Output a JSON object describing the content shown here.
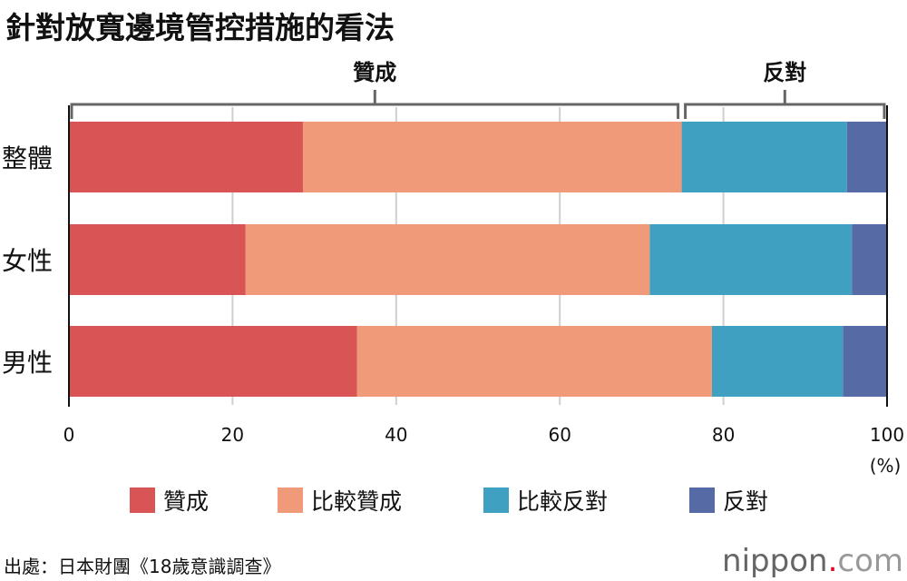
{
  "chart_data": {
    "type": "bar",
    "orientation": "horizontal",
    "stacked": true,
    "title": "針對放寬邊境管控措施的看法",
    "categories": [
      "整體",
      "女性",
      "男性"
    ],
    "series": [
      {
        "name": "贊成",
        "color": "#d95555",
        "values": [
          28.6,
          21.6,
          35.2
        ]
      },
      {
        "name": "比較贊成",
        "color": "#f19a7a",
        "values": [
          46.3,
          49.4,
          43.4
        ]
      },
      {
        "name": "比較反對",
        "color": "#3fa0c2",
        "values": [
          20.2,
          24.7,
          16.0
        ]
      },
      {
        "name": "反對",
        "color": "#566ba5",
        "values": [
          4.9,
          4.3,
          5.4
        ]
      }
    ],
    "xlim": [
      0,
      100
    ],
    "xticks": [
      "0",
      "20",
      "40",
      "60",
      "80",
      "100"
    ],
    "xunit": "(%)",
    "grid": true,
    "legend_position": "bottom",
    "groups": [
      {
        "label": "贊成",
        "range": [
          0,
          74.9
        ]
      },
      {
        "label": "反對",
        "range": [
          74.9,
          100
        ]
      }
    ]
  },
  "source": "出處：日本財團《18歲意識調查》",
  "logo": {
    "name": "nippon",
    "dot": ".",
    "tld": "com"
  }
}
